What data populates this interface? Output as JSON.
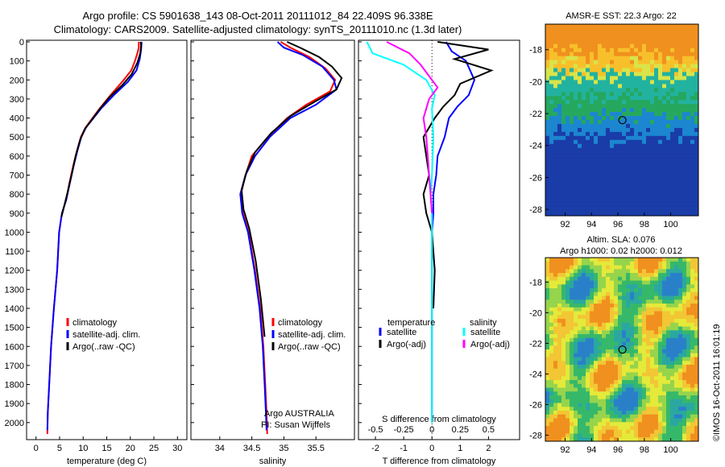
{
  "title": {
    "line1": "Argo profile: CS 5901638_143 08-Oct-2011 20111012_84 22.409S 96.338E",
    "line2": "Climatology: CARS2009. Satellite-adjusted climatology: synTS_20111010.nc (1.3d later)"
  },
  "colors": {
    "climatology": "#ff0000",
    "satellite": "#0000ff",
    "argo": "#000000",
    "sat_sal": "#00ffff",
    "argo_sal": "#ff00ff"
  },
  "chart_data": [
    {
      "id": "temperature",
      "type": "line",
      "xlabel": "temperature (deg C)",
      "xlim": [
        -2,
        32
      ],
      "ylim": [
        0,
        2060
      ],
      "xticks": [
        0,
        5,
        10,
        15,
        20,
        25,
        30
      ],
      "yticks": [
        0,
        100,
        200,
        300,
        400,
        500,
        600,
        700,
        800,
        900,
        1000,
        1100,
        1200,
        1300,
        1400,
        1500,
        1600,
        1700,
        1800,
        1900,
        2000
      ],
      "legend": [
        "climatology",
        "satellite-adj. clim.",
        "Argo(..raw -QC)"
      ],
      "series": [
        {
          "name": "climatology",
          "color": "#ff0000",
          "points": [
            [
              21.8,
              0
            ],
            [
              21.8,
              30
            ],
            [
              21.5,
              60
            ],
            [
              21,
              100
            ],
            [
              20.2,
              150
            ],
            [
              18.6,
              200
            ],
            [
              15.8,
              280
            ],
            [
              13.5,
              350
            ],
            [
              12,
              400
            ],
            [
              10.5,
              450
            ],
            [
              9.5,
              500
            ],
            [
              8.6,
              580
            ],
            [
              7.9,
              650
            ],
            [
              7,
              750
            ],
            [
              6.4,
              830
            ],
            [
              5.5,
              900
            ],
            [
              4.9,
              1000
            ],
            [
              4.5,
              1200
            ],
            [
              3.8,
              1400
            ],
            [
              3.2,
              1600
            ],
            [
              2.8,
              1800
            ],
            [
              2.5,
              1950
            ],
            [
              2.4,
              2060
            ]
          ]
        },
        {
          "name": "satellite-adj. clim.",
          "color": "#0000ff",
          "points": [
            [
              22.4,
              0
            ],
            [
              22.3,
              40
            ],
            [
              22,
              90
            ],
            [
              21.3,
              150
            ],
            [
              19.5,
              210
            ],
            [
              16.5,
              280
            ],
            [
              13.8,
              350
            ],
            [
              12.2,
              400
            ],
            [
              10.6,
              450
            ],
            [
              9.6,
              500
            ],
            [
              8.7,
              580
            ],
            [
              8,
              650
            ],
            [
              7.1,
              750
            ],
            [
              6.4,
              830
            ],
            [
              5.5,
              900
            ],
            [
              4.9,
              1000
            ],
            [
              4.5,
              1200
            ],
            [
              3.8,
              1400
            ],
            [
              3.2,
              1600
            ],
            [
              2.8,
              1800
            ],
            [
              2.5,
              1950
            ],
            [
              2.4,
              2040
            ]
          ]
        },
        {
          "name": "Argo(..raw -QC)",
          "color": "#000000",
          "points": [
            [
              22.2,
              0
            ],
            [
              22.3,
              20
            ],
            [
              22.1,
              60
            ],
            [
              21.5,
              110
            ],
            [
              20.3,
              170
            ],
            [
              18.2,
              230
            ],
            [
              15.6,
              290
            ],
            [
              13.3,
              360
            ],
            [
              11.8,
              410
            ],
            [
              10.3,
              460
            ],
            [
              9.3,
              520
            ],
            [
              8.4,
              600
            ],
            [
              7.7,
              680
            ],
            [
              6.8,
              780
            ],
            [
              6.2,
              840
            ],
            [
              5.4,
              920
            ]
          ]
        }
      ]
    },
    {
      "id": "salinity",
      "type": "line",
      "xlabel": "salinity",
      "xlim": [
        33.55,
        36.1
      ],
      "ylim": [
        0,
        2060
      ],
      "xticks": [
        34,
        34.5,
        35,
        35.5
      ],
      "xticklabels": [
        "34",
        "34.5",
        "35",
        "35.5"
      ],
      "legend": [
        "climatology",
        "satellite-adj. clim.",
        "Argo(..raw -QC)"
      ],
      "annotation": [
        "Argo AUSTRALIA",
        "PI: Susan Wijffels"
      ],
      "series": [
        {
          "name": "climatology",
          "color": "#ff0000",
          "points": [
            [
              34.95,
              0
            ],
            [
              35.1,
              30
            ],
            [
              35.4,
              80
            ],
            [
              35.65,
              140
            ],
            [
              35.8,
              200
            ],
            [
              35.72,
              260
            ],
            [
              35.35,
              330
            ],
            [
              35.05,
              400
            ],
            [
              34.75,
              500
            ],
            [
              34.5,
              600
            ],
            [
              34.4,
              700
            ],
            [
              34.33,
              800
            ],
            [
              34.36,
              900
            ],
            [
              34.45,
              1000
            ],
            [
              34.55,
              1200
            ],
            [
              34.63,
              1400
            ],
            [
              34.68,
              1600
            ],
            [
              34.71,
              1800
            ],
            [
              34.73,
              1950
            ],
            [
              34.74,
              2060
            ]
          ]
        },
        {
          "name": "satellite-adj. clim.",
          "color": "#0000ff",
          "points": [
            [
              34.9,
              0
            ],
            [
              35.0,
              30
            ],
            [
              35.3,
              70
            ],
            [
              35.6,
              130
            ],
            [
              35.78,
              200
            ],
            [
              35.82,
              250
            ],
            [
              35.5,
              330
            ],
            [
              35.1,
              400
            ],
            [
              34.78,
              500
            ],
            [
              34.55,
              600
            ],
            [
              34.4,
              700
            ],
            [
              34.32,
              800
            ],
            [
              34.35,
              900
            ],
            [
              34.44,
              1000
            ],
            [
              34.54,
              1200
            ],
            [
              34.62,
              1400
            ],
            [
              34.67,
              1600
            ],
            [
              34.7,
              1800
            ],
            [
              34.72,
              1950
            ],
            [
              34.73,
              2040
            ]
          ]
        },
        {
          "name": "Argo(..raw -QC)",
          "color": "#000000",
          "points": [
            [
              35.05,
              0
            ],
            [
              35.25,
              30
            ],
            [
              35.55,
              80
            ],
            [
              35.75,
              130
            ],
            [
              35.9,
              190
            ],
            [
              35.82,
              250
            ],
            [
              35.45,
              320
            ],
            [
              35.1,
              390
            ],
            [
              34.8,
              480
            ],
            [
              34.55,
              580
            ],
            [
              34.42,
              680
            ],
            [
              34.34,
              780
            ],
            [
              34.37,
              880
            ],
            [
              34.46,
              980
            ],
            [
              34.56,
              1150
            ],
            [
              34.64,
              1350
            ],
            [
              34.7,
              1550
            ]
          ]
        }
      ]
    },
    {
      "id": "difference",
      "type": "line",
      "xlabel": "T difference from climatology",
      "xlabel2": "S difference from climatology",
      "xlim": [
        -2.6,
        3.1
      ],
      "ylim": [
        0,
        2060
      ],
      "xticks": [
        -2,
        -1,
        0,
        1,
        2
      ],
      "xticks2": [
        -0.5,
        -0.25,
        0,
        0.25,
        0.5
      ],
      "xticks2labels": [
        "-0.5",
        "-0.25",
        "0",
        "0.25",
        "0.5"
      ],
      "legend_titles": [
        "temperature",
        "salinity"
      ],
      "legend": [
        "satellite",
        "Argo(-adj)",
        "satellite",
        "Argo(-adj)"
      ],
      "series": [
        {
          "name": "satellite",
          "group": "temperature",
          "color": "#0000ff",
          "points": [
            [
              0.5,
              0
            ],
            [
              0.7,
              50
            ],
            [
              1.2,
              100
            ],
            [
              1.5,
              200
            ],
            [
              1.3,
              280
            ],
            [
              0.9,
              340
            ],
            [
              0.6,
              400
            ],
            [
              0.45,
              500
            ],
            [
              0.2,
              600
            ],
            [
              0.15,
              700
            ],
            [
              0.05,
              800
            ],
            [
              0.05,
              900
            ],
            [
              0,
              1000
            ],
            [
              0,
              1200
            ],
            [
              0,
              1400
            ],
            [
              0,
              1600
            ],
            [
              0,
              1800
            ],
            [
              0,
              2000
            ]
          ]
        },
        {
          "name": "Argo(-adj)",
          "group": "temperature",
          "color": "#000000",
          "points": [
            [
              0.2,
              0
            ],
            [
              2.0,
              40
            ],
            [
              0.8,
              90
            ],
            [
              2.1,
              150
            ],
            [
              1.0,
              220
            ],
            [
              0.8,
              280
            ],
            [
              0.4,
              340
            ],
            [
              0.1,
              400
            ],
            [
              -0.3,
              500
            ],
            [
              -0.2,
              600
            ],
            [
              -0.1,
              700
            ],
            [
              -0.3,
              800
            ],
            [
              -0.2,
              900
            ],
            [
              0,
              1000
            ],
            [
              0.1,
              1200
            ],
            [
              0.05,
              1400
            ]
          ]
        },
        {
          "name": "satellite",
          "group": "salinity",
          "color": "#00ffff",
          "points": [
            [
              -2.3,
              0
            ],
            [
              -2.1,
              60
            ],
            [
              -1.0,
              120
            ],
            [
              -0.2,
              200
            ],
            [
              0.1,
              280
            ],
            [
              0,
              350
            ],
            [
              0.05,
              500
            ],
            [
              0,
              700
            ],
            [
              -0.05,
              800
            ],
            [
              0,
              900
            ],
            [
              0,
              1000
            ],
            [
              0,
              1200
            ],
            [
              0,
              1500
            ],
            [
              0,
              1800
            ],
            [
              0,
              2000
            ]
          ]
        },
        {
          "name": "Argo(-adj)",
          "group": "salinity",
          "color": "#ff00ff",
          "points": [
            [
              -1.6,
              0
            ],
            [
              -0.8,
              60
            ],
            [
              -0.4,
              120
            ],
            [
              -0.1,
              180
            ],
            [
              0.2,
              240
            ],
            [
              -0.1,
              300
            ],
            [
              -0.3,
              400
            ],
            [
              -0.2,
              500
            ],
            [
              -0.15,
              600
            ],
            [
              -0.1,
              700
            ],
            [
              -0.05,
              800
            ],
            [
              0,
              900
            ]
          ]
        }
      ]
    }
  ],
  "maps": [
    {
      "id": "sst-map",
      "title": "AMSR-E SST: 22.3 Argo: 22",
      "xticks": [
        92,
        94,
        96,
        98,
        100
      ],
      "yticks": [
        -18,
        -20,
        -22,
        -24,
        -26,
        -28
      ],
      "lonlim": [
        90.5,
        102.1
      ],
      "latlim": [
        -28.4,
        -16.4
      ],
      "marker": [
        96.34,
        -22.41
      ]
    },
    {
      "id": "sla-map",
      "title_line1": "Altim. SLA: 0.076",
      "title_line2": "Argo h1000: 0.02 h2000: 0.012",
      "xticks": [
        92,
        94,
        96,
        98,
        100
      ],
      "yticks": [
        -18,
        -20,
        -22,
        -24,
        -26,
        -28
      ],
      "lonlim": [
        90.5,
        102.1
      ],
      "latlim": [
        -28.4,
        -16.4
      ],
      "marker": [
        96.34,
        -22.41
      ]
    }
  ],
  "stamp": "©IMOS 16-Oct-2011 16:01:19"
}
